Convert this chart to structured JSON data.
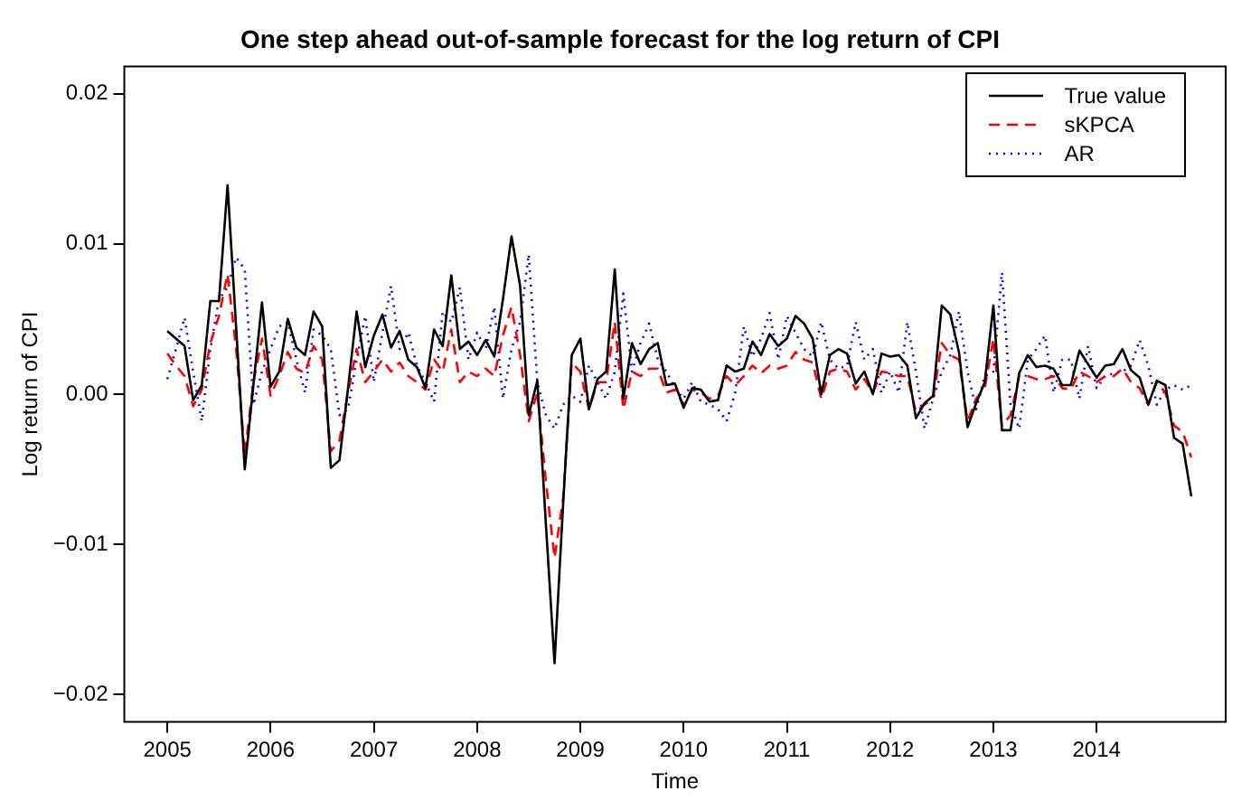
{
  "chart_data": {
    "type": "line",
    "title": "One step ahead out-of-sample forecast for the log return of CPI",
    "xlabel": "Time",
    "ylabel": "Log return of CPI",
    "x": [
      "2005-01",
      "2005-02",
      "2005-03",
      "2005-04",
      "2005-05",
      "2005-06",
      "2005-07",
      "2005-08",
      "2005-09",
      "2005-10",
      "2005-11",
      "2005-12",
      "2006-01",
      "2006-02",
      "2006-03",
      "2006-04",
      "2006-05",
      "2006-06",
      "2006-07",
      "2006-08",
      "2006-09",
      "2006-10",
      "2006-11",
      "2006-12",
      "2007-01",
      "2007-02",
      "2007-03",
      "2007-04",
      "2007-05",
      "2007-06",
      "2007-07",
      "2007-08",
      "2007-09",
      "2007-10",
      "2007-11",
      "2007-12",
      "2008-01",
      "2008-02",
      "2008-03",
      "2008-04",
      "2008-05",
      "2008-06",
      "2008-07",
      "2008-08",
      "2008-09",
      "2008-10",
      "2008-11",
      "2008-12",
      "2009-01",
      "2009-02",
      "2009-03",
      "2009-04",
      "2009-05",
      "2009-06",
      "2009-07",
      "2009-08",
      "2009-09",
      "2009-10",
      "2009-11",
      "2009-12",
      "2010-01",
      "2010-02",
      "2010-03",
      "2010-04",
      "2010-05",
      "2010-06",
      "2010-07",
      "2010-08",
      "2010-09",
      "2010-10",
      "2010-11",
      "2010-12",
      "2011-01",
      "2011-02",
      "2011-03",
      "2011-04",
      "2011-05",
      "2011-06",
      "2011-07",
      "2011-08",
      "2011-09",
      "2011-10",
      "2011-11",
      "2011-12",
      "2012-01",
      "2012-02",
      "2012-03",
      "2012-04",
      "2012-05",
      "2012-06",
      "2012-07",
      "2012-08",
      "2012-09",
      "2012-10",
      "2012-11",
      "2012-12",
      "2013-01",
      "2013-02",
      "2013-03",
      "2013-04",
      "2013-05",
      "2013-06",
      "2013-07",
      "2013-08",
      "2013-09",
      "2013-10",
      "2013-11",
      "2013-12",
      "2014-01",
      "2014-02",
      "2014-03",
      "2014-04",
      "2014-05",
      "2014-06",
      "2014-07",
      "2014-08",
      "2014-09",
      "2014-10",
      "2014-11",
      "2014-12"
    ],
    "series": [
      {
        "name": "True value",
        "color": "#000000",
        "line_style": "solid",
        "values": [
          0.0042,
          0.0037,
          0.0032,
          -0.0004,
          0.0006,
          0.0062,
          0.0062,
          0.0139,
          0.0044,
          -0.005,
          0.0006,
          0.0061,
          0.0005,
          0.0015,
          0.005,
          0.0031,
          0.0026,
          0.0055,
          0.0045,
          -0.0049,
          -0.0044,
          0.0004,
          0.0055,
          0.0018,
          0.0039,
          0.0053,
          0.0031,
          0.0042,
          0.0023,
          0.0018,
          0.0004,
          0.0043,
          0.0032,
          0.0079,
          0.003,
          0.0035,
          0.0026,
          0.0036,
          0.0025,
          0.0063,
          0.0105,
          0.0072,
          -0.0014,
          0.0009,
          -0.0087,
          -0.0179,
          -0.0073,
          0.0026,
          0.0037,
          -0.001,
          0.001,
          0.0015,
          0.0083,
          -0.0003,
          0.0034,
          0.002,
          0.003,
          0.0034,
          0.0006,
          0.0007,
          -0.0009,
          0.0004,
          0.0003,
          -0.0005,
          -0.0004,
          0.0019,
          0.0015,
          0.0017,
          0.0035,
          0.0026,
          0.004,
          0.0032,
          0.0037,
          0.0052,
          0.0047,
          0.0037,
          0.0,
          0.0026,
          0.003,
          0.0027,
          0.0007,
          0.0015,
          0.0,
          0.0027,
          0.0025,
          0.0026,
          0.0019,
          -0.0016,
          -0.0006,
          -0.0001,
          0.0059,
          0.0053,
          0.0028,
          -0.0022,
          -0.0006,
          0.0008,
          0.0059,
          -0.0024,
          -0.0024,
          0.0014,
          0.0026,
          0.0018,
          0.0019,
          0.0017,
          0.0006,
          0.0006,
          0.0029,
          0.002,
          0.0011,
          0.0019,
          0.002,
          0.003,
          0.0016,
          0.0011,
          -0.0007,
          0.0009,
          0.0006,
          -0.0029,
          -0.0033,
          -0.0068
        ]
      },
      {
        "name": "sKPCA",
        "color": "#ff0000",
        "line_style": "dashed",
        "values": [
          0.0027,
          0.0019,
          0.0012,
          -0.0008,
          0.0003,
          0.0034,
          0.0052,
          0.008,
          0.003,
          -0.004,
          0.0008,
          0.0037,
          -0.0001,
          0.0012,
          0.0028,
          0.0017,
          0.0014,
          0.0032,
          0.0023,
          -0.0038,
          -0.0031,
          0.0001,
          0.003,
          0.0008,
          0.0015,
          0.0023,
          0.0015,
          0.0021,
          0.0012,
          0.0008,
          0.0003,
          0.0023,
          0.0015,
          0.0043,
          0.0008,
          0.0015,
          0.0012,
          0.0017,
          0.0012,
          0.0039,
          0.0058,
          0.0026,
          -0.0018,
          0.0001,
          -0.0058,
          -0.0109,
          -0.0069,
          0.0021,
          0.0015,
          -0.001,
          0.0008,
          0.0008,
          0.0048,
          -0.001,
          0.0015,
          0.0012,
          0.0017,
          0.0017,
          0.0001,
          0.0003,
          -0.0007,
          0.0003,
          0.0001,
          -0.0003,
          -0.0001,
          0.0012,
          0.0006,
          0.0012,
          0.0019,
          0.0014,
          0.0019,
          0.0017,
          0.0019,
          0.0028,
          0.0023,
          0.0021,
          -0.0003,
          0.0015,
          0.0017,
          0.0015,
          0.0003,
          0.001,
          0.0001,
          0.0015,
          0.0014,
          0.0012,
          0.0012,
          -0.0012,
          -0.0007,
          -0.0003,
          0.0034,
          0.0026,
          0.0023,
          -0.0018,
          -0.0003,
          0.0004,
          0.0037,
          -0.0021,
          -0.0014,
          0.0012,
          0.0012,
          0.001,
          0.001,
          0.0012,
          0.0004,
          0.0003,
          0.0015,
          0.0012,
          0.0008,
          0.0012,
          0.0012,
          0.0017,
          0.0008,
          0.0004,
          -0.0007,
          0.0008,
          0.0001,
          -0.0021,
          -0.0025,
          -0.0042
        ]
      },
      {
        "name": "AR",
        "color": "#0000ff",
        "line_style": "dotted",
        "values": [
          0.001,
          0.003,
          0.0051,
          0.0015,
          -0.0018,
          0.003,
          0.0063,
          0.0071,
          0.0091,
          0.0083,
          -0.0007,
          0.0015,
          0.003,
          0.0045,
          0.0048,
          0.0023,
          0.0001,
          0.0043,
          0.0039,
          0.003,
          -0.0014,
          -0.001,
          0.0023,
          0.0052,
          0.0008,
          0.0041,
          0.0072,
          0.003,
          0.0041,
          0.0019,
          0.0008,
          -0.0005,
          0.0055,
          0.0048,
          0.0071,
          0.0023,
          0.0041,
          0.003,
          0.0058,
          -0.0003,
          0.003,
          0.0048,
          0.0093,
          0.0008,
          -0.0014,
          -0.0023,
          -0.0007,
          -0.0001,
          -0.0005,
          0.0019,
          0.0008,
          -0.0003,
          0.0015,
          0.0067,
          0.0015,
          0.0034,
          0.0047,
          0.0023,
          0.0015,
          0.0004,
          -0.0003,
          0.0008,
          -0.0005,
          -0.0007,
          -0.001,
          -0.0018,
          0.0001,
          0.0045,
          0.0025,
          0.0037,
          0.0054,
          0.0023,
          0.0052,
          0.0041,
          0.003,
          0.0025,
          0.0048,
          0.0023,
          0.0017,
          0.0019,
          0.0048,
          0.0023,
          0.003,
          0.0001,
          0.0015,
          0.0001,
          0.0048,
          0.0015,
          -0.0023,
          -0.0003,
          0.0015,
          0.0026,
          0.0055,
          0.0015,
          -0.001,
          0.0012,
          0.0015,
          0.0081,
          -0.0007,
          -0.0023,
          0.0023,
          0.003,
          0.0039,
          0.0001,
          0.0023,
          0.0023,
          -0.0003,
          0.0032,
          0.0004,
          0.0012,
          0.0014,
          0.0015,
          0.0019,
          0.0036,
          0.0019,
          -0.0007,
          0.0003,
          0.0006,
          0.0003,
          0.0006
        ]
      }
    ],
    "xlim": [
      "2004-08",
      "2015-04"
    ],
    "xticks": [
      "2005",
      "2006",
      "2007",
      "2008",
      "2009",
      "2010",
      "2011",
      "2012",
      "2013",
      "2014"
    ],
    "ylim": [
      -0.0218,
      0.0218
    ],
    "yticks": [
      {
        "value": -0.02,
        "label": "−0.02"
      },
      {
        "value": -0.01,
        "label": "−0.01"
      },
      {
        "value": 0,
        "label": "0.00"
      },
      {
        "value": 0.01,
        "label": "0.01"
      },
      {
        "value": 0.02,
        "label": "0.02"
      }
    ],
    "grid": false,
    "legend": "top right",
    "marker": "none"
  }
}
